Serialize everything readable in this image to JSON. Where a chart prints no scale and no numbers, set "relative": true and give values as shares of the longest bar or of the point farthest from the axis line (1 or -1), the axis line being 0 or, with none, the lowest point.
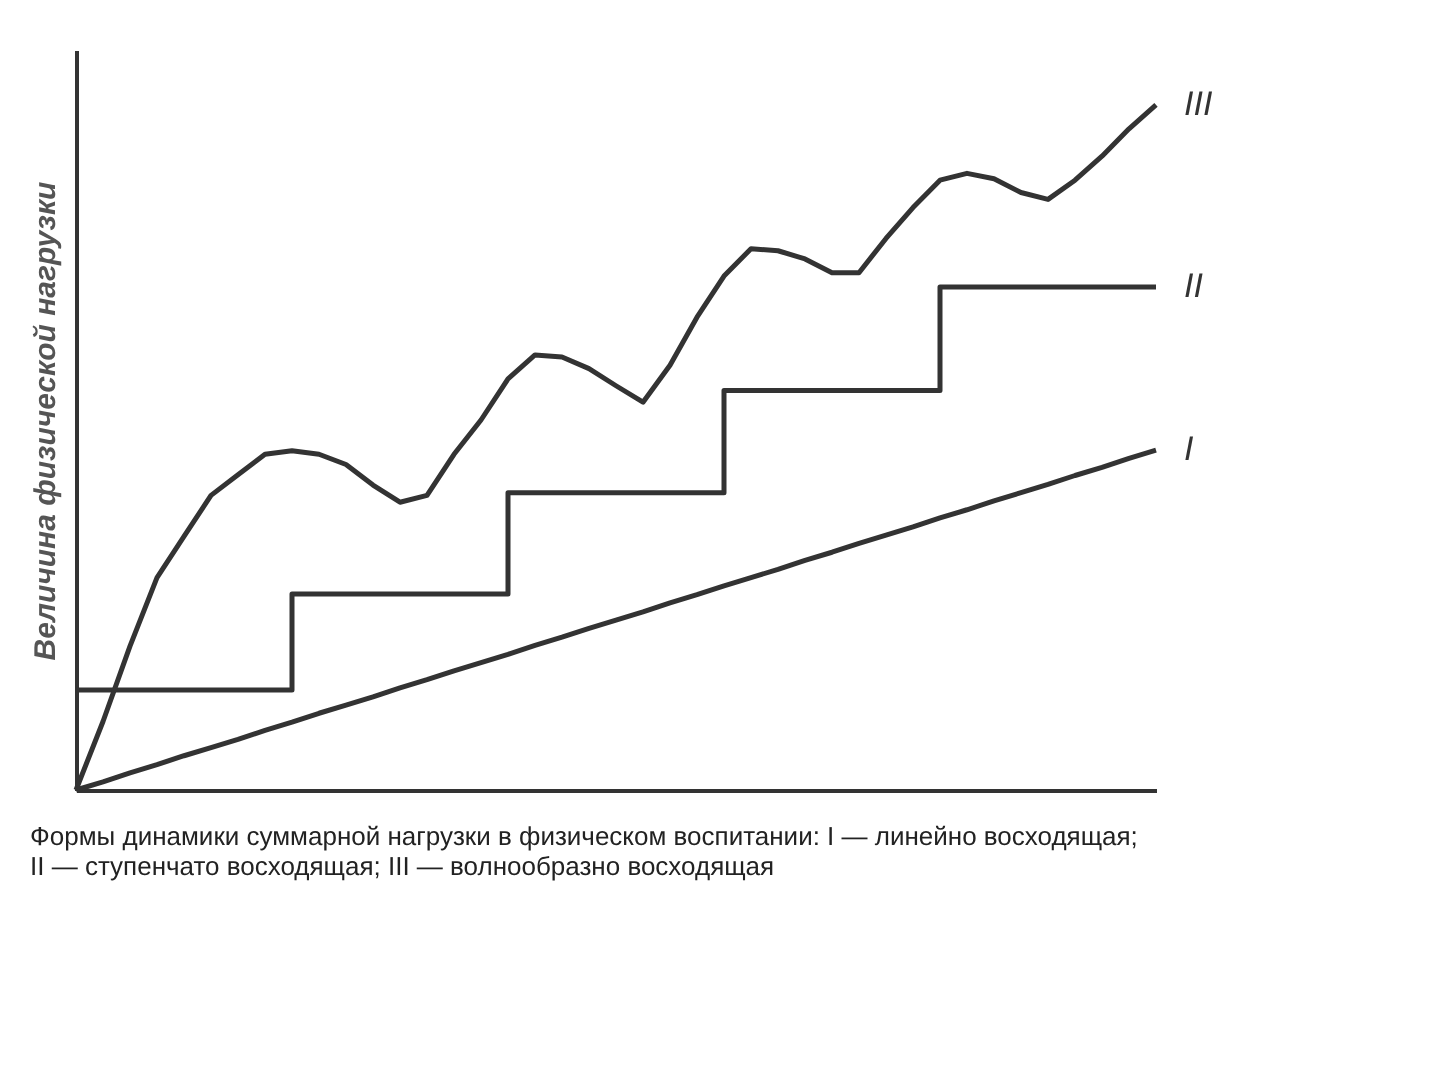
{
  "chart_data": {
    "type": "line",
    "relative": true,
    "ylabel": "Величина физической нагрузки",
    "categories": [
      null,
      null,
      null,
      null,
      null,
      null,
      null,
      null,
      null,
      null,
      null,
      null,
      null,
      null,
      null,
      null,
      null,
      null,
      null,
      null,
      null,
      null,
      null,
      null,
      null,
      null,
      null,
      null,
      null,
      null,
      null,
      null,
      null,
      null,
      null,
      null,
      null,
      null,
      null,
      null,
      null
    ],
    "tick_labels": false,
    "grid": false,
    "legend": false,
    "marker": "none",
    "line_style": "solid",
    "series": [
      {
        "name": "I",
        "color": "#333333",
        "values": [
          0,
          0.012,
          0.025,
          0.037,
          0.05,
          0.062,
          0.074,
          0.087,
          0.099,
          0.112,
          0.124,
          0.136,
          0.149,
          0.161,
          0.174,
          0.186,
          0.198,
          0.211,
          0.223,
          0.236,
          0.248,
          0.26,
          0.273,
          0.285,
          0.298,
          0.31,
          0.322,
          0.335,
          0.347,
          0.36,
          0.372,
          0.384,
          0.397,
          0.409,
          0.422,
          0.434,
          0.446,
          0.459,
          0.471,
          0.484,
          0.496
        ]
      },
      {
        "name": "II",
        "type": "step",
        "color": "#333333",
        "values": [
          0.146,
          0.146,
          0.146,
          0.146,
          0.146,
          0.146,
          0.146,
          0.146,
          0.286,
          0.286,
          0.286,
          0.286,
          0.286,
          0.286,
          0.286,
          0.286,
          0.434,
          0.434,
          0.434,
          0.434,
          0.434,
          0.434,
          0.434,
          0.434,
          0.583,
          0.583,
          0.583,
          0.583,
          0.583,
          0.583,
          0.583,
          0.583,
          0.734,
          0.734,
          0.734,
          0.734,
          0.734,
          0.734,
          0.734,
          0.734,
          0.734
        ]
      },
      {
        "name": "III",
        "color": "#333333",
        "values": [
          0,
          0.1,
          0.21,
          0.31,
          0.37,
          0.43,
          0.46,
          0.49,
          0.495,
          0.49,
          0.475,
          0.445,
          0.42,
          0.43,
          0.49,
          0.54,
          0.6,
          0.635,
          0.632,
          0.615,
          0.59,
          0.566,
          0.62,
          0.69,
          0.75,
          0.79,
          0.787,
          0.775,
          0.755,
          0.755,
          0.805,
          0.85,
          0.89,
          0.9,
          0.892,
          0.872,
          0.862,
          0.89,
          0.925,
          0.965,
          1.0
        ]
      }
    ],
    "annotations": [
      "Формы динамики суммарной нагрузки в физическом воспитании: I — линейно восходящая; II — ступенчато восходящая; III — волнообразно восходящая"
    ]
  }
}
